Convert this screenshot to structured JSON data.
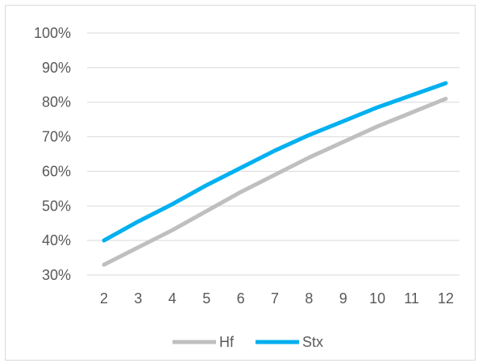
{
  "chart_data": {
    "type": "line",
    "x": [
      2,
      3,
      4,
      5,
      6,
      7,
      8,
      9,
      10,
      11,
      12
    ],
    "series": [
      {
        "name": "Hf",
        "color": "#bfbfbf",
        "values": [
          0.33,
          0.38,
          0.43,
          0.485,
          0.54,
          0.59,
          0.64,
          0.685,
          0.73,
          0.77,
          0.81
        ]
      },
      {
        "name": "Stx",
        "color": "#00b0f0",
        "values": [
          0.4,
          0.455,
          0.505,
          0.56,
          0.61,
          0.66,
          0.705,
          0.745,
          0.785,
          0.82,
          0.855
        ]
      }
    ],
    "y_ticks": [
      "30%",
      "40%",
      "50%",
      "60%",
      "70%",
      "80%",
      "90%",
      "100%"
    ],
    "x_ticks": [
      "2",
      "3",
      "4",
      "5",
      "6",
      "7",
      "8",
      "9",
      "10",
      "11",
      "12"
    ],
    "ylim": [
      0.3,
      1.0
    ],
    "grid": true,
    "legend_position": "bottom",
    "title": "",
    "xlabel": "",
    "ylabel": ""
  }
}
